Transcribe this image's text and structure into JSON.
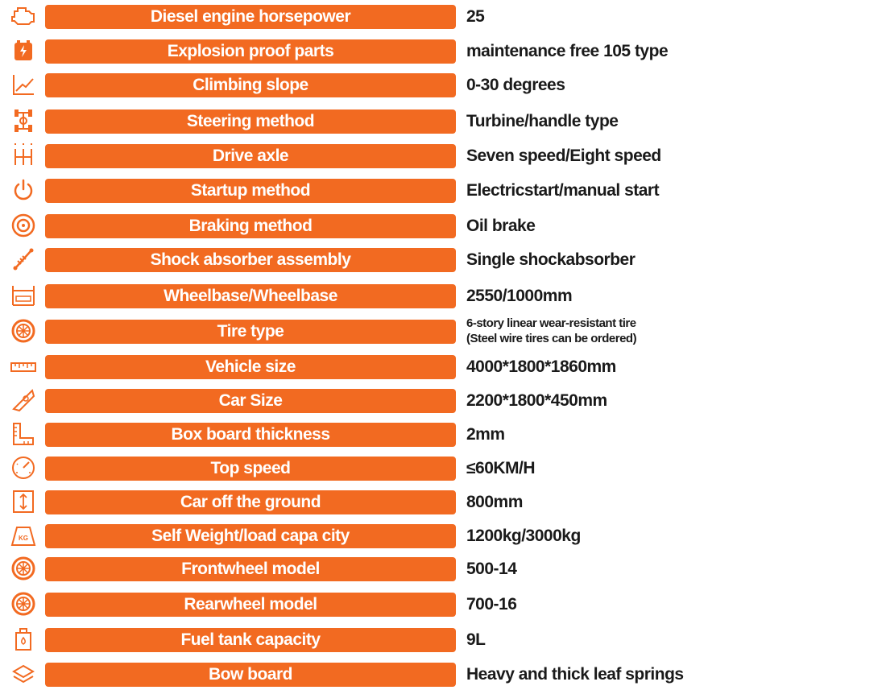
{
  "colors": {
    "accent": "#f26a21",
    "label_text": "#ffffff",
    "value_text": "#1a1a1a"
  },
  "specs": [
    {
      "icon": "engine-icon",
      "label": "Diesel engine horsepower",
      "value": "25"
    },
    {
      "icon": "battery-icon",
      "label": "Explosion proof parts",
      "value": "maintenance free 105 type"
    },
    {
      "icon": "slope-chart-icon",
      "label": "Climbing slope",
      "value": "0-30 degrees"
    },
    {
      "icon": "steering-axle-icon",
      "label": "Steering method",
      "value": "Turbine/handle type"
    },
    {
      "icon": "gear-shift-icon",
      "label": "Drive axle",
      "value": "Seven speed/Eight speed"
    },
    {
      "icon": "power-icon",
      "label": "Startup method",
      "value": "Electricstart/manual start"
    },
    {
      "icon": "brake-disc-icon",
      "label": "Braking method",
      "value": "Oil brake"
    },
    {
      "icon": "shock-absorber-icon",
      "label": "Shock absorber assembly",
      "value": "Single shockabsorber"
    },
    {
      "icon": "wheelbase-icon",
      "label": "Wheelbase/Wheelbase",
      "value": "2550/1000mm"
    },
    {
      "icon": "tire-icon",
      "label": "Tire type",
      "value_lines": [
        "6-story linear wear-resistant tire",
        "(Steel wire tires can be ordered)"
      ]
    },
    {
      "icon": "ruler-icon",
      "label": "Vehicle size",
      "value": "4000*1800*1860mm"
    },
    {
      "icon": "set-square-icon",
      "label": "Car Size",
      "value": "2200*1800*450mm"
    },
    {
      "icon": "l-ruler-icon",
      "label": "Box board thickness",
      "value": "2mm"
    },
    {
      "icon": "speedometer-icon",
      "label": "Top speed",
      "value": "≤60KM/H"
    },
    {
      "icon": "height-icon",
      "label": "Car off the ground",
      "value": "800mm"
    },
    {
      "icon": "weight-kg-icon",
      "label": "Self  Weight/load capa city",
      "value": "1200kg/3000kg"
    },
    {
      "icon": "wheel-icon",
      "label": "Frontwheel model",
      "value": "500-14"
    },
    {
      "icon": "wheel-icon",
      "label": "Rearwheel model",
      "value": "700-16"
    },
    {
      "icon": "fuel-can-icon",
      "label": "Fuel tank capacity",
      "value": "9L"
    },
    {
      "icon": "layers-icon",
      "label": "Bow board",
      "value": "Heavy and thick leaf springs"
    }
  ]
}
